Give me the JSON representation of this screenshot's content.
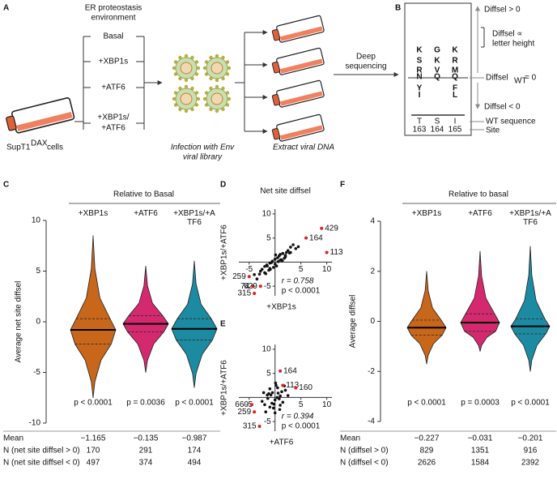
{
  "panel_labels": [
    "A",
    "B",
    "C",
    "D",
    "E",
    "F"
  ],
  "schematic": {
    "env_title_1": "ER proteostasis",
    "env_title_2": "environment",
    "conditions": [
      "Basal",
      "+XBP1s",
      "+ATF6",
      "+XBP1s/",
      "+ATF6"
    ],
    "cell_line": "SupT1",
    "cell_line_sup": "DAX",
    "cell_suffix": "cells",
    "infection_1": "Infection with Env",
    "infection_2": "viral library",
    "extract": "Extract viral DNA",
    "deep_1": "Deep",
    "deep_2": "sequencing"
  },
  "logo": {
    "columns": [
      {
        "above": [
          {
            "letter": "K",
            "color": "#4056a1"
          },
          {
            "letter": "S",
            "color": "#e07b24"
          },
          {
            "letter": "R",
            "color": "#4056a1"
          },
          {
            "letter": "N",
            "color": "#7a3a8a"
          }
        ],
        "below": [
          {
            "letter": "Y",
            "color": "#3aa040"
          },
          {
            "letter": "I",
            "color": "#3aa040"
          }
        ],
        "wt": "T",
        "site": "163"
      },
      {
        "above": [
          {
            "letter": "G",
            "color": "#e0609a"
          },
          {
            "letter": "K",
            "color": "#4056a1"
          },
          {
            "letter": "V",
            "color": "#3aa040"
          },
          {
            "letter": "Q",
            "color": "#7a3a8a"
          }
        ],
        "below": [],
        "wt": "S",
        "site": "164"
      },
      {
        "above": [
          {
            "letter": "K",
            "color": "#4056a1"
          },
          {
            "letter": "R",
            "color": "#4056a1"
          },
          {
            "letter": "M",
            "color": "#3aa040"
          },
          {
            "letter": "Q",
            "color": "#7a3a8a"
          }
        ],
        "below": [
          {
            "letter": "F",
            "color": "#3aa040"
          },
          {
            "letter": "L",
            "color": "#3aa040"
          }
        ],
        "wt": "I",
        "site": "165"
      }
    ],
    "pos": "Diffsel > 0",
    "prop_1": "Diffsel ∝",
    "prop_2": "letter height",
    "zero_main": "Diffsel",
    "zero_sub": "WT",
    "zero_rest": "= 0",
    "neg": "Diffsel < 0",
    "wt_label": "WT sequence",
    "site_label": "Site"
  },
  "chart_data": [
    {
      "type": "violin",
      "title": "Relative to Basal",
      "ylabel": "Average net site diffsel",
      "categories": [
        "+XBP1s",
        "+ATF6",
        "+XBP1s/+ATF6"
      ],
      "ylim": [
        -10,
        10
      ],
      "yticks": [
        -10,
        -5,
        0,
        5,
        10
      ],
      "violins": [
        {
          "color": "#c8661a",
          "min": -7.5,
          "q1": -2.2,
          "median": -0.8,
          "q3": 0.3,
          "max": 8.5
        },
        {
          "color": "#d4296e",
          "min": -5,
          "q1": -1,
          "median": -0.2,
          "q3": 0.6,
          "max": 5.5
        },
        {
          "color": "#1c8aa0",
          "min": -6.5,
          "q1": -1.8,
          "median": -0.7,
          "q3": 0.3,
          "max": 6
        }
      ],
      "p_values": [
        "p < 0.0001",
        "p = 0.0036",
        "p < 0.0001"
      ],
      "table": [
        {
          "label": "Mean",
          "values": [
            "−1.165",
            "−0.135",
            "−0.987"
          ]
        },
        {
          "label": "N (net site diffsel > 0)",
          "values": [
            "170",
            "291",
            "174"
          ]
        },
        {
          "label": "N (net site diffsel < 0)",
          "values": [
            "497",
            "374",
            "494"
          ]
        }
      ]
    },
    {
      "type": "scatter",
      "title": "Net site diffsel",
      "xlabel": "+XBP1s",
      "ylabel": "+XBP1s/+ATF6",
      "xlim": [
        -7,
        11
      ],
      "ylim": [
        -7,
        11
      ],
      "xticks": [
        -5,
        5,
        10
      ],
      "yticks": [
        -5,
        5,
        10
      ],
      "color": "#111111",
      "x": [
        -3,
        -2.5,
        -2,
        -1.5,
        -1,
        -0.5,
        0,
        0.5,
        1,
        1.5,
        2,
        2.5,
        3,
        -2,
        -1,
        0,
        1,
        2,
        3,
        4,
        -3.5,
        -1.8,
        -0.7,
        0.3,
        1.2,
        2.2,
        -2.8,
        -1.2,
        0.8,
        1.8,
        2.8,
        3.5,
        -0.3,
        0.6,
        -1.6,
        1.4,
        4.5,
        -4,
        0.1,
        -0.9
      ],
      "values": [
        -2.5,
        -1.5,
        -2.2,
        -0.8,
        -1.3,
        0.2,
        -0.4,
        0.9,
        0.4,
        1.8,
        1.1,
        2.4,
        2.0,
        -0.9,
        -0.2,
        0.6,
        1.6,
        1.4,
        3.1,
        2.8,
        -3.5,
        -2.4,
        -0.1,
        -0.8,
        0.5,
        2.0,
        -1.9,
        -1.7,
        1.3,
        0.8,
        1.9,
        3.6,
        -1.1,
        0.1,
        -0.6,
        0.3,
        3.2,
        -2.6,
        1.5,
        -1.5
      ],
      "highlight": {
        "color": "#e02020",
        "labels": [
          "164",
          "429",
          "113",
          "259",
          "74",
          "629",
          "315"
        ],
        "x": [
          6,
          9,
          10,
          -5,
          -4.3,
          -2.8,
          -4
        ],
        "values": [
          5,
          7,
          2,
          -3,
          -5,
          -5,
          -6.5
        ]
      },
      "r": "r = 0.758",
      "p": "p < 0.0001"
    },
    {
      "type": "scatter",
      "xlabel": "+ATF6",
      "ylabel": "+XBP1s/+ATF6",
      "xlim": [
        -7,
        11
      ],
      "ylim": [
        -7,
        11
      ],
      "xticks": [
        -5,
        5,
        10
      ],
      "yticks": [
        -5,
        5,
        10
      ],
      "color": "#111111",
      "x": [
        -2,
        -1.5,
        -1,
        -0.5,
        0,
        0.5,
        1,
        1.5,
        2,
        -1.8,
        -1.2,
        -0.6,
        0.2,
        0.8,
        1.3,
        -0.3,
        0.4,
        -2.5,
        2.5,
        -1,
        0,
        1,
        -1.4,
        0.6,
        -0.8,
        1.8,
        -2.2,
        0.1,
        -0.2,
        0.9
      ],
      "values": [
        -1.5,
        0.5,
        -2,
        1,
        -0.5,
        2,
        0.3,
        -1,
        1.5,
        -3,
        0.8,
        -1.2,
        2.5,
        -0.3,
        1.2,
        -2.2,
        0,
        -0.8,
        0.4,
        1.8,
        -3.2,
        -1.6,
        -0.2,
        0.9,
        0.5,
        2.4,
        1,
        3,
        -1.4,
        -2.5
      ],
      "highlight": {
        "color": "#e02020",
        "labels": [
          "164",
          "113",
          "160",
          "660",
          "259",
          "315"
        ],
        "x": [
          1,
          1.5,
          4,
          -4.5,
          -4,
          -3
        ],
        "values": [
          5.5,
          2.5,
          2,
          -1.5,
          -3,
          -6
        ]
      },
      "r": "r = 0.394",
      "p": "p < 0.0001"
    },
    {
      "type": "violin",
      "title": "Relative to basal",
      "ylabel": "Average diffsel",
      "categories": [
        "+XBP1s",
        "+ATF6",
        "+XBP1s/+ATF6"
      ],
      "ylim": [
        -4,
        4
      ],
      "yticks": [
        -4,
        -2,
        0,
        2,
        4
      ],
      "violins": [
        {
          "color": "#c8661a",
          "min": -1.7,
          "q1": -0.55,
          "median": -0.25,
          "q3": 0.05,
          "max": 2
        },
        {
          "color": "#d4296e",
          "min": -1.2,
          "q1": -0.4,
          "median": -0.05,
          "q3": 0.3,
          "max": 2.8
        },
        {
          "color": "#1c8aa0",
          "min": -2,
          "q1": -0.5,
          "median": -0.2,
          "q3": 0.1,
          "max": 3
        }
      ],
      "p_values": [
        "p < 0.0001",
        "p = 0.0003",
        "p < 0.0001"
      ],
      "table": [
        {
          "label": "Mean",
          "values": [
            "−0.227",
            "−0.031",
            "−0.201"
          ]
        },
        {
          "label": "N (diffsel > 0)",
          "values": [
            "829",
            "1351",
            "916"
          ]
        },
        {
          "label": "N (diffsel < 0)",
          "values": [
            "2626",
            "1584",
            "2392"
          ]
        }
      ]
    }
  ]
}
